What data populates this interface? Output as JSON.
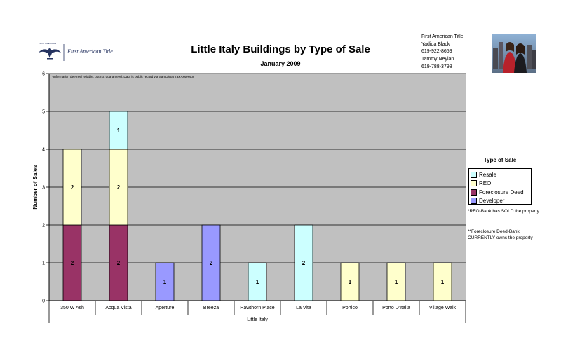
{
  "header": {
    "logo_small_text": "FIRST AMERICAN",
    "logo_text": "First American Title",
    "contact": [
      "First American Title",
      "Yadida Black",
      "619-922-8659",
      "Tammy Neylan",
      "619-788-3798"
    ]
  },
  "notes": {
    "disclaimer": "*Information deemed reliable, but not guaranteed.  Data is public record via San Diego Tax Assessor.",
    "reo_note": "*REO-Bank has SOLD the property",
    "foreclosure_note": "**Foreclosure Deed-Bank CURRENTLY owns the property"
  },
  "colors": {
    "plot_bg": "#c0c0c0",
    "Resale": "#ccffff",
    "REO": "#ffffcc",
    "Foreclosure Deed": "#993366",
    "Developer": "#9999ff"
  },
  "chart_data": {
    "type": "bar",
    "stacked": true,
    "title": "Little Italy Buildings by Type of Sale",
    "subtitle": "January 2009",
    "xlabel": "Little Italy",
    "ylabel": "Number of Sales",
    "ylim": [
      0,
      6
    ],
    "yticks": [
      "0",
      "1",
      "2",
      "3",
      "4",
      "5",
      "6"
    ],
    "grid": true,
    "legend_title": "Type of Sale",
    "legend_position": "right",
    "categories": [
      "350 W Ash",
      "Acqua Vista",
      "Aperture",
      "Breeza",
      "Hawthorn Place",
      "La Vita",
      "Portico",
      "Porto D'Italia",
      "Village Walk"
    ],
    "series": [
      {
        "name": "Developer",
        "values": [
          0,
          0,
          1,
          2,
          0,
          0,
          0,
          0,
          0
        ]
      },
      {
        "name": "Foreclosure Deed",
        "values": [
          2,
          2,
          0,
          0,
          0,
          0,
          0,
          0,
          0
        ]
      },
      {
        "name": "REO",
        "values": [
          2,
          2,
          0,
          0,
          0,
          0,
          1,
          1,
          1
        ]
      },
      {
        "name": "Resale",
        "values": [
          0,
          1,
          0,
          0,
          1,
          2,
          0,
          0,
          0
        ]
      }
    ],
    "legend_order": [
      "Resale",
      "REO",
      "Foreclosure Deed",
      "Developer"
    ]
  }
}
